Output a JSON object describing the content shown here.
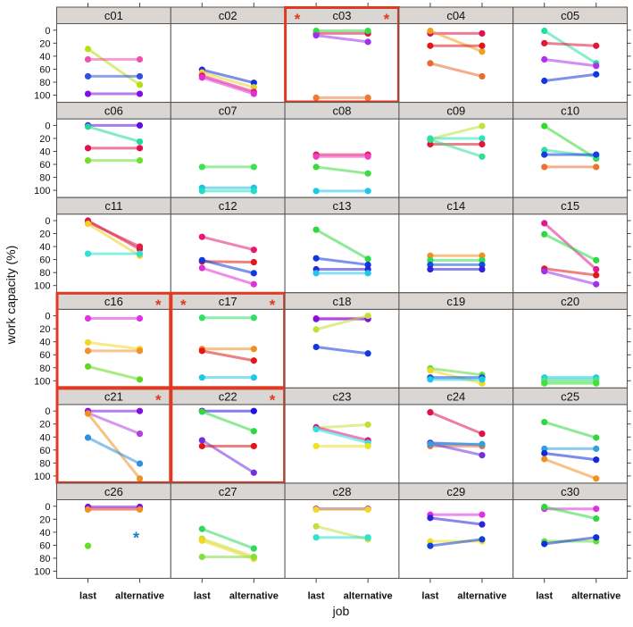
{
  "chart_data": {
    "type": "line",
    "title": "",
    "xlabel": "job",
    "ylabel": "work capacity (%)",
    "x_categories": [
      "last",
      "alternative"
    ],
    "y_ticks": [
      0,
      20,
      40,
      60,
      80,
      100
    ],
    "ylim": [
      -10,
      110
    ],
    "y_inverted": true,
    "highlight_color": "#e03a22",
    "strip_color": "#d9d6d4",
    "panels": [
      {
        "name": "c01",
        "highlight": false,
        "stars": [],
        "lines": [
          {
            "last": 29,
            "alt": 84,
            "color": "#b8e010"
          },
          {
            "last": 45,
            "alt": 45,
            "color": "#f050b0"
          },
          {
            "last": 71,
            "alt": 71,
            "color": "#3050e0"
          },
          {
            "last": 98,
            "alt": 98,
            "color": "#8010e0"
          }
        ]
      },
      {
        "name": "c02",
        "highlight": false,
        "stars": [],
        "lines": [
          {
            "last": 61,
            "alt": 81,
            "color": "#1030d8"
          },
          {
            "last": 65,
            "alt": 88,
            "color": "#e8d030"
          },
          {
            "last": 70,
            "alt": 95,
            "color": "#e81870"
          },
          {
            "last": 73,
            "alt": 98,
            "color": "#e030d8"
          }
        ]
      },
      {
        "name": "c03",
        "highlight": true,
        "stars": [
          "left",
          "right"
        ],
        "lines": [
          {
            "last": 5,
            "alt": 5,
            "color": "#e0104a"
          },
          {
            "last": 1,
            "alt": 1,
            "color": "#30e040"
          },
          {
            "last": 8,
            "alt": 18,
            "color": "#a030f0"
          },
          {
            "last": 104,
            "alt": 104,
            "color": "#f07a30"
          }
        ]
      },
      {
        "name": "c04",
        "highlight": false,
        "stars": [],
        "lines": [
          {
            "last": 5,
            "alt": 5,
            "color": "#e0104a"
          },
          {
            "last": 1,
            "alt": 33,
            "color": "#f0a020"
          },
          {
            "last": 24,
            "alt": 24,
            "color": "#e01818"
          },
          {
            "last": 51,
            "alt": 71,
            "color": "#e86a30"
          }
        ]
      },
      {
        "name": "c05",
        "highlight": false,
        "stars": [],
        "lines": [
          {
            "last": 1,
            "alt": 51,
            "color": "#20e0a0"
          },
          {
            "last": 20,
            "alt": 24,
            "color": "#e01838"
          },
          {
            "last": 45,
            "alt": 55,
            "color": "#b030f0"
          },
          {
            "last": 78,
            "alt": 68,
            "color": "#1038e0"
          }
        ]
      },
      {
        "name": "c06",
        "highlight": false,
        "stars": [],
        "lines": [
          {
            "last": 0,
            "alt": 0,
            "color": "#6010e0"
          },
          {
            "last": 2,
            "alt": 25,
            "color": "#20d8a0"
          },
          {
            "last": 35,
            "alt": 35,
            "color": "#e0104a"
          },
          {
            "last": 54,
            "alt": 54,
            "color": "#70e030"
          }
        ]
      },
      {
        "name": "c07",
        "highlight": false,
        "stars": [],
        "lines": [
          {
            "last": 64,
            "alt": 64,
            "color": "#40e050"
          },
          {
            "last": 96,
            "alt": 96,
            "color": "#20c0e0"
          },
          {
            "last": 101,
            "alt": 101,
            "color": "#20e0c0"
          }
        ]
      },
      {
        "name": "c08",
        "highlight": false,
        "stars": [],
        "lines": [
          {
            "last": 45,
            "alt": 45,
            "color": "#e01860"
          },
          {
            "last": 48,
            "alt": 48,
            "color": "#f040c0"
          },
          {
            "last": 64,
            "alt": 74,
            "color": "#40d840"
          },
          {
            "last": 101,
            "alt": 101,
            "color": "#20c8e8"
          }
        ]
      },
      {
        "name": "c09",
        "highlight": false,
        "stars": [],
        "lines": [
          {
            "last": 21,
            "alt": 1,
            "color": "#c0e040"
          },
          {
            "last": 20,
            "alt": 20,
            "color": "#30e0c0"
          },
          {
            "last": 29,
            "alt": 29,
            "color": "#e01830"
          },
          {
            "last": 22,
            "alt": 48,
            "color": "#30e090"
          }
        ]
      },
      {
        "name": "c10",
        "highlight": false,
        "stars": [],
        "lines": [
          {
            "last": 1,
            "alt": 51,
            "color": "#30d830"
          },
          {
            "last": 38,
            "alt": 48,
            "color": "#30e0a0"
          },
          {
            "last": 45,
            "alt": 45,
            "color": "#1040e0"
          },
          {
            "last": 64,
            "alt": 64,
            "color": "#f07030"
          }
        ]
      },
      {
        "name": "c11",
        "highlight": false,
        "stars": [],
        "lines": [
          {
            "last": 0,
            "alt": 44,
            "color": "#e0104a"
          },
          {
            "last": 2,
            "alt": 40,
            "color": "#e02040"
          },
          {
            "last": 5,
            "alt": 54,
            "color": "#f0d020"
          },
          {
            "last": 51,
            "alt": 51,
            "color": "#30e0d0"
          }
        ]
      },
      {
        "name": "c12",
        "highlight": false,
        "stars": [],
        "lines": [
          {
            "last": 25,
            "alt": 45,
            "color": "#e81870"
          },
          {
            "last": 63,
            "alt": 64,
            "color": "#e01818"
          },
          {
            "last": 61,
            "alt": 81,
            "color": "#1038e0"
          },
          {
            "last": 73,
            "alt": 98,
            "color": "#e030d8"
          }
        ]
      },
      {
        "name": "c13",
        "highlight": false,
        "stars": [],
        "lines": [
          {
            "last": 14,
            "alt": 59,
            "color": "#30d840"
          },
          {
            "last": 58,
            "alt": 68,
            "color": "#1038e0"
          },
          {
            "last": 75,
            "alt": 75,
            "color": "#3020e0"
          },
          {
            "last": 81,
            "alt": 81,
            "color": "#20c8e8"
          }
        ]
      },
      {
        "name": "c14",
        "highlight": false,
        "stars": [],
        "lines": [
          {
            "last": 54,
            "alt": 54,
            "color": "#f09020"
          },
          {
            "last": 61,
            "alt": 61,
            "color": "#30e050"
          },
          {
            "last": 68,
            "alt": 68,
            "color": "#1050e0"
          },
          {
            "last": 75,
            "alt": 75,
            "color": "#3020e0"
          }
        ]
      },
      {
        "name": "c15",
        "highlight": false,
        "stars": [],
        "lines": [
          {
            "last": 4,
            "alt": 75,
            "color": "#e01890"
          },
          {
            "last": 21,
            "alt": 61,
            "color": "#30d840"
          },
          {
            "last": 74,
            "alt": 84,
            "color": "#e01818"
          },
          {
            "last": 78,
            "alt": 98,
            "color": "#a030f0"
          }
        ]
      },
      {
        "name": "c16",
        "highlight": true,
        "stars": [
          "right"
        ],
        "lines": [
          {
            "last": 4,
            "alt": 4,
            "color": "#e030e0"
          },
          {
            "last": 41,
            "alt": 51,
            "color": "#f0d820"
          },
          {
            "last": 54,
            "alt": 54,
            "color": "#f09030"
          },
          {
            "last": 78,
            "alt": 98,
            "color": "#60d820"
          }
        ]
      },
      {
        "name": "c17",
        "highlight": true,
        "stars": [
          "left",
          "right"
        ],
        "lines": [
          {
            "last": 3,
            "alt": 3,
            "color": "#30e060"
          },
          {
            "last": 51,
            "alt": 51,
            "color": "#f09020"
          },
          {
            "last": 54,
            "alt": 69,
            "color": "#e01818"
          },
          {
            "last": 95,
            "alt": 95,
            "color": "#20c8e8"
          }
        ]
      },
      {
        "name": "c18",
        "highlight": false,
        "stars": [],
        "lines": [
          {
            "last": 4,
            "alt": 4,
            "color": "#e030e0"
          },
          {
            "last": 5,
            "alt": 5,
            "color": "#8010e0"
          },
          {
            "last": 21,
            "alt": 0,
            "color": "#c0e030"
          },
          {
            "last": 48,
            "alt": 58,
            "color": "#1038e0"
          }
        ]
      },
      {
        "name": "c19",
        "highlight": false,
        "stars": [],
        "lines": [
          {
            "last": 81,
            "alt": 91,
            "color": "#60d840"
          },
          {
            "last": 84,
            "alt": 104,
            "color": "#f0d820"
          },
          {
            "last": 95,
            "alt": 95,
            "color": "#1050e0"
          },
          {
            "last": 98,
            "alt": 98,
            "color": "#20c8e8"
          }
        ]
      },
      {
        "name": "c20",
        "highlight": false,
        "stars": [],
        "lines": [
          {
            "last": 95,
            "alt": 95,
            "color": "#20c8e8"
          },
          {
            "last": 98,
            "alt": 98,
            "color": "#30e0c0"
          },
          {
            "last": 101,
            "alt": 101,
            "color": "#60e060"
          },
          {
            "last": 104,
            "alt": 104,
            "color": "#40e040"
          }
        ]
      },
      {
        "name": "c21",
        "highlight": true,
        "stars": [
          "right"
        ],
        "lines": [
          {
            "last": 0,
            "alt": 0,
            "color": "#8010e0"
          },
          {
            "last": 3,
            "alt": 35,
            "color": "#b040e0"
          },
          {
            "last": 4,
            "alt": 104,
            "color": "#f09020"
          },
          {
            "last": 41,
            "alt": 81,
            "color": "#3090e0"
          }
        ]
      },
      {
        "name": "c22",
        "highlight": true,
        "stars": [
          "right"
        ],
        "lines": [
          {
            "last": 0,
            "alt": 0,
            "color": "#2010e0"
          },
          {
            "last": 1,
            "alt": 31,
            "color": "#30d840"
          },
          {
            "last": 45,
            "alt": 95,
            "color": "#7030e0"
          },
          {
            "last": 54,
            "alt": 54,
            "color": "#e01818"
          }
        ]
      },
      {
        "name": "c23",
        "highlight": false,
        "stars": [],
        "lines": [
          {
            "last": 26,
            "alt": 21,
            "color": "#c0e040"
          },
          {
            "last": 25,
            "alt": 45,
            "color": "#e0187a"
          },
          {
            "last": 28,
            "alt": 49,
            "color": "#30e0e0"
          },
          {
            "last": 54,
            "alt": 54,
            "color": "#f0e020"
          }
        ]
      },
      {
        "name": "c24",
        "highlight": false,
        "stars": [],
        "lines": [
          {
            "last": 2,
            "alt": 35,
            "color": "#e0104a"
          },
          {
            "last": 49,
            "alt": 52,
            "color": "#1038e0"
          },
          {
            "last": 54,
            "alt": 54,
            "color": "#f07030"
          },
          {
            "last": 50,
            "alt": 68,
            "color": "#7030e0"
          },
          {
            "last": 51,
            "alt": 51,
            "color": "#30a0e0"
          }
        ]
      },
      {
        "name": "c25",
        "highlight": false,
        "stars": [],
        "lines": [
          {
            "last": 17,
            "alt": 41,
            "color": "#30d840"
          },
          {
            "last": 58,
            "alt": 58,
            "color": "#30a0e0"
          },
          {
            "last": 65,
            "alt": 75,
            "color": "#1028e0"
          },
          {
            "last": 74,
            "alt": 104,
            "color": "#f09020"
          }
        ]
      },
      {
        "name": "c26",
        "highlight": false,
        "stars": [],
        "missing_marker": {
          "value": 45,
          "color": "#1a80c8"
        },
        "lines": [
          {
            "last": 4,
            "alt": 4,
            "color": "#e030e0"
          },
          {
            "last": 1,
            "alt": 1,
            "color": "#8010e0"
          },
          {
            "last": 5,
            "alt": 5,
            "color": "#f09020"
          },
          {
            "last": 61,
            "alt": null,
            "color": "#60e020"
          }
        ]
      },
      {
        "name": "c27",
        "highlight": false,
        "stars": [],
        "lines": [
          {
            "last": 35,
            "alt": 65,
            "color": "#30d860"
          },
          {
            "last": 50,
            "alt": 78,
            "color": "#c0e030"
          },
          {
            "last": 53,
            "alt": 81,
            "color": "#f0d820"
          },
          {
            "last": 78,
            "alt": 78,
            "color": "#80e040"
          }
        ]
      },
      {
        "name": "c28",
        "highlight": false,
        "stars": [],
        "lines": [
          {
            "last": 4,
            "alt": 4,
            "color": "#8010e0"
          },
          {
            "last": 5,
            "alt": 5,
            "color": "#f0d820"
          },
          {
            "last": 31,
            "alt": 51,
            "color": "#c0e040"
          },
          {
            "last": 48,
            "alt": 48,
            "color": "#30e0d0"
          }
        ]
      },
      {
        "name": "c29",
        "highlight": false,
        "stars": [],
        "lines": [
          {
            "last": 13,
            "alt": 13,
            "color": "#e030e0"
          },
          {
            "last": 18,
            "alt": 28,
            "color": "#3020e0"
          },
          {
            "last": 54,
            "alt": 54,
            "color": "#f0e020"
          },
          {
            "last": 61,
            "alt": 51,
            "color": "#1040e0"
          }
        ]
      },
      {
        "name": "c30",
        "highlight": false,
        "stars": [],
        "lines": [
          {
            "last": 4,
            "alt": 4,
            "color": "#e030e0"
          },
          {
            "last": 1,
            "alt": 19,
            "color": "#30d840"
          },
          {
            "last": 54,
            "alt": 54,
            "color": "#60e030"
          },
          {
            "last": 58,
            "alt": 48,
            "color": "#1030e0"
          }
        ]
      }
    ]
  }
}
